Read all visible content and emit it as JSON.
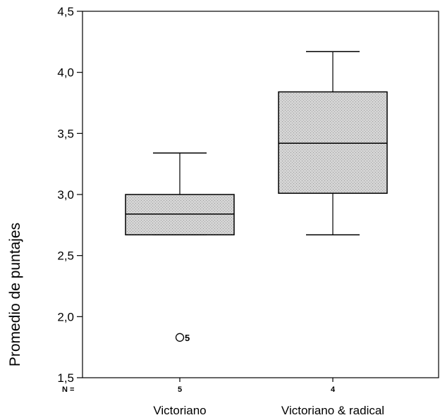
{
  "chart_data": {
    "type": "box",
    "ylabel": "Promedio de puntajes",
    "ylim": [
      1.5,
      4.5
    ],
    "y_ticks": [
      1.5,
      2.0,
      2.5,
      3.0,
      3.5,
      4.0,
      4.5
    ],
    "y_tick_labels": [
      "1,5",
      "2,0",
      "2,5",
      "3,0",
      "3,5",
      "4,0",
      "4,5"
    ],
    "n_prefix": "N =",
    "box_fill": "#cfcfcf",
    "categories": [
      "Victoriano",
      "Victoriano & radical"
    ],
    "n": [
      "5",
      "4"
    ],
    "boxes": [
      {
        "whisker_low": 2.67,
        "q1": 2.67,
        "median": 2.84,
        "q3": 3.0,
        "whisker_high": 3.34,
        "outliers": [
          {
            "value": 1.83,
            "label": "5"
          }
        ]
      },
      {
        "whisker_low": 2.67,
        "q1": 3.01,
        "median": 3.42,
        "q3": 3.84,
        "whisker_high": 4.17,
        "outliers": []
      }
    ]
  }
}
